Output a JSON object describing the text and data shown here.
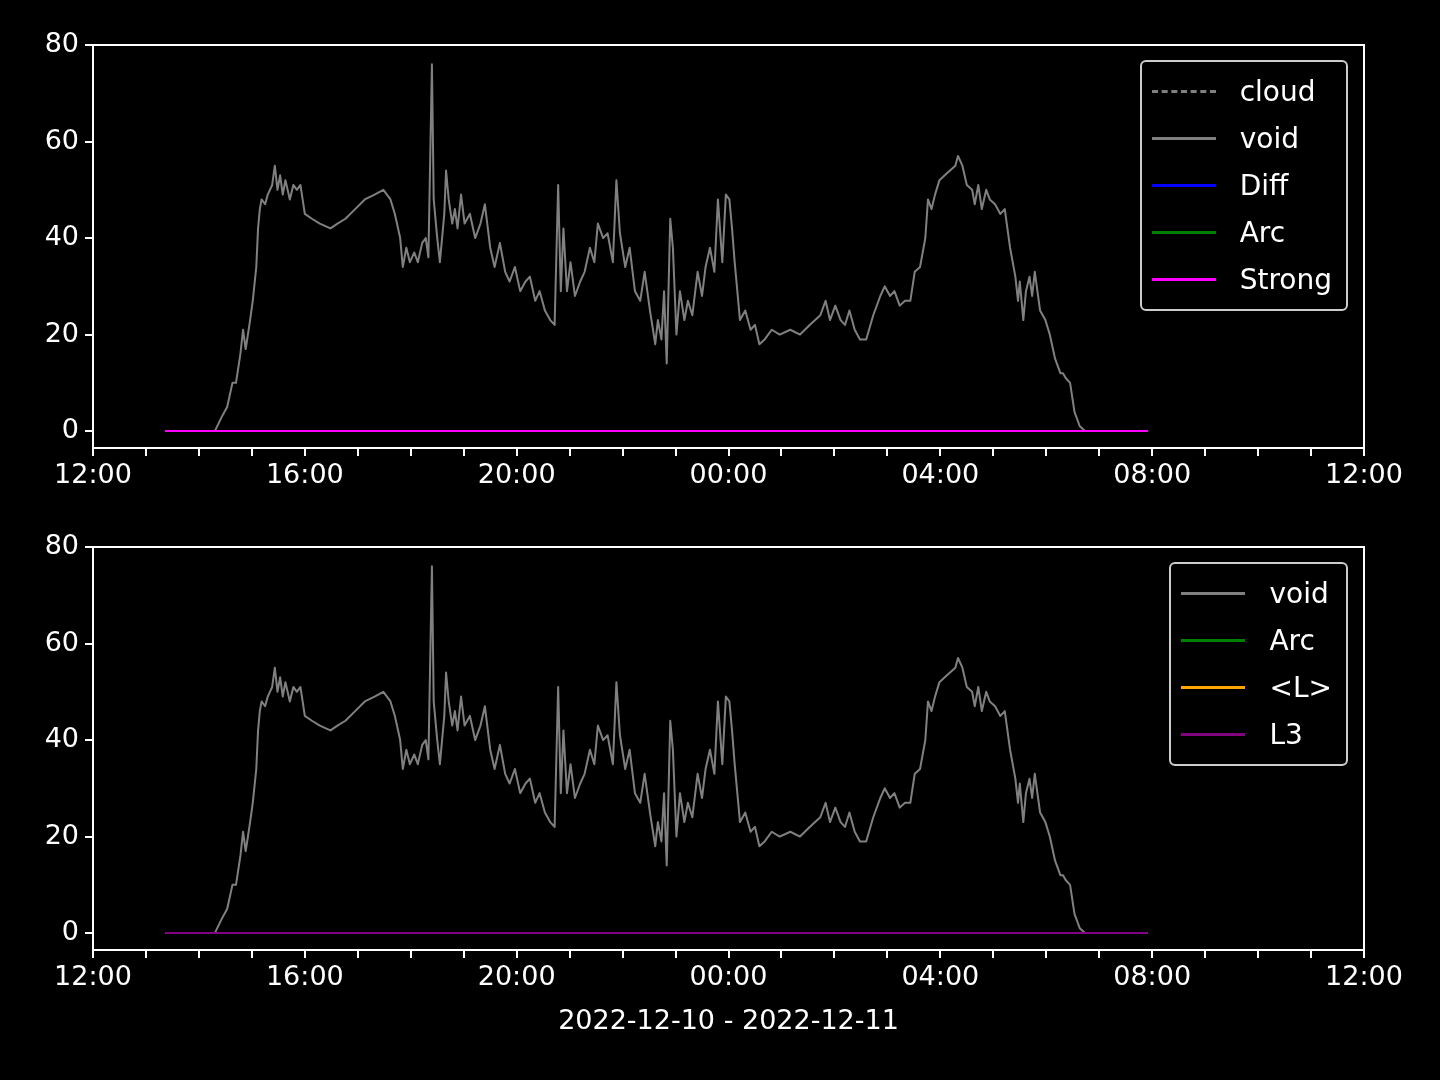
{
  "chart_data": [
    {
      "type": "line",
      "xlim": [
        "2022-12-10T12:00",
        "2022-12-11T12:00"
      ],
      "ylim": [
        -3.5,
        80
      ],
      "xticks": [
        {
          "value": "2022-12-10T12:00",
          "label": "12:00"
        },
        {
          "value": "2022-12-10T13:00",
          "label": null
        },
        {
          "value": "2022-12-10T14:00",
          "label": null
        },
        {
          "value": "2022-12-10T15:00",
          "label": null
        },
        {
          "value": "2022-12-10T16:00",
          "label": "16:00"
        },
        {
          "value": "2022-12-10T17:00",
          "label": null
        },
        {
          "value": "2022-12-10T18:00",
          "label": null
        },
        {
          "value": "2022-12-10T19:00",
          "label": null
        },
        {
          "value": "2022-12-10T20:00",
          "label": "20:00"
        },
        {
          "value": "2022-12-10T21:00",
          "label": null
        },
        {
          "value": "2022-12-10T22:00",
          "label": null
        },
        {
          "value": "2022-12-10T23:00",
          "label": null
        },
        {
          "value": "2022-12-11T00:00",
          "label": "00:00"
        },
        {
          "value": "2022-12-11T01:00",
          "label": null
        },
        {
          "value": "2022-12-11T02:00",
          "label": null
        },
        {
          "value": "2022-12-11T03:00",
          "label": null
        },
        {
          "value": "2022-12-11T04:00",
          "label": "04:00"
        },
        {
          "value": "2022-12-11T05:00",
          "label": null
        },
        {
          "value": "2022-12-11T06:00",
          "label": null
        },
        {
          "value": "2022-12-11T07:00",
          "label": null
        },
        {
          "value": "2022-12-11T08:00",
          "label": "08:00"
        },
        {
          "value": "2022-12-11T09:00",
          "label": null
        },
        {
          "value": "2022-12-11T10:00",
          "label": null
        },
        {
          "value": "2022-12-11T11:00",
          "label": null
        },
        {
          "value": "2022-12-11T12:00",
          "label": "12:00"
        }
      ],
      "yticks": [
        0,
        20,
        40,
        60,
        80
      ],
      "grid": false,
      "legend": "top right",
      "marker": "none",
      "series": [
        {
          "name": "cloud",
          "color": "#808080",
          "line_style": "dashed"
        },
        {
          "name": "void",
          "color": "#808080",
          "x": [
            "2022-12-10T13:22",
            "2022-12-10T14:18",
            "2022-12-10T14:26",
            "2022-12-10T14:32",
            "2022-12-10T14:38",
            "2022-12-10T14:42",
            "2022-12-10T14:47",
            "2022-12-10T14:50",
            "2022-12-10T14:53",
            "2022-12-10T14:58",
            "2022-12-10T15:01",
            "2022-12-10T15:05",
            "2022-12-10T15:07",
            "2022-12-10T15:09",
            "2022-12-10T15:11",
            "2022-12-10T15:15",
            "2022-12-10T15:18",
            "2022-12-10T15:23",
            "2022-12-10T15:26",
            "2022-12-10T15:29",
            "2022-12-10T15:32",
            "2022-12-10T15:35",
            "2022-12-10T15:38",
            "2022-12-10T15:43",
            "2022-12-10T15:47",
            "2022-12-10T15:51",
            "2022-12-10T15:55",
            "2022-12-10T16:00",
            "2022-12-10T16:08",
            "2022-12-10T16:17",
            "2022-12-10T16:29",
            "2022-12-10T16:37",
            "2022-12-10T16:46",
            "2022-12-10T16:57",
            "2022-12-10T17:08",
            "2022-12-10T17:19",
            "2022-12-10T17:29",
            "2022-12-10T17:37",
            "2022-12-10T17:42",
            "2022-12-10T17:48",
            "2022-12-10T17:51",
            "2022-12-10T17:55",
            "2022-12-10T17:59",
            "2022-12-10T18:04",
            "2022-12-10T18:08",
            "2022-12-10T18:13",
            "2022-12-10T18:17",
            "2022-12-10T18:20",
            "2022-12-10T18:24",
            "2022-12-10T18:26",
            "2022-12-10T18:30",
            "2022-12-10T18:33",
            "2022-12-10T18:38",
            "2022-12-10T18:40",
            "2022-12-10T18:43",
            "2022-12-10T18:47",
            "2022-12-10T18:50",
            "2022-12-10T18:53",
            "2022-12-10T18:57",
            "2022-12-10T19:01",
            "2022-12-10T19:07",
            "2022-12-10T19:13",
            "2022-12-10T19:19",
            "2022-12-10T19:24",
            "2022-12-10T19:30",
            "2022-12-10T19:35",
            "2022-12-10T19:41",
            "2022-12-10T19:47",
            "2022-12-10T19:52",
            "2022-12-10T19:58",
            "2022-12-10T20:04",
            "2022-12-10T20:10",
            "2022-12-10T20:15",
            "2022-12-10T20:21",
            "2022-12-10T20:26",
            "2022-12-10T20:32",
            "2022-12-10T20:38",
            "2022-12-10T20:43",
            "2022-12-10T20:47",
            "2022-12-10T20:50",
            "2022-12-10T20:53",
            "2022-12-10T20:57",
            "2022-12-10T21:01",
            "2022-12-10T21:06",
            "2022-12-10T21:12",
            "2022-12-10T21:17",
            "2022-12-10T21:23",
            "2022-12-10T21:28",
            "2022-12-10T21:32",
            "2022-12-10T21:38",
            "2022-12-10T21:43",
            "2022-12-10T21:49",
            "2022-12-10T21:53",
            "2022-12-10T21:57",
            "2022-12-10T22:03",
            "2022-12-10T22:08",
            "2022-12-10T22:14",
            "2022-12-10T22:20",
            "2022-12-10T22:25",
            "2022-12-10T22:31",
            "2022-12-10T22:37",
            "2022-12-10T22:40",
            "2022-12-10T22:44",
            "2022-12-10T22:47",
            "2022-12-10T22:50",
            "2022-12-10T22:54",
            "2022-12-10T22:57",
            "2022-12-10T23:01",
            "2022-12-10T23:05",
            "2022-12-10T23:10",
            "2022-12-10T23:14",
            "2022-12-10T23:19",
            "2022-12-10T23:25",
            "2022-12-10T23:30",
            "2022-12-10T23:34",
            "2022-12-10T23:39",
            "2022-12-10T23:44",
            "2022-12-10T23:48",
            "2022-12-10T23:53",
            "2022-12-10T23:57",
            "2022-12-11T00:01",
            "2022-12-11T00:04",
            "2022-12-11T00:07",
            "2022-12-11T00:13",
            "2022-12-11T00:19",
            "2022-12-11T00:25",
            "2022-12-11T00:30",
            "2022-12-11T00:35",
            "2022-12-11T00:41",
            "2022-12-11T00:49",
            "2022-12-11T00:58",
            "2022-12-11T01:10",
            "2022-12-11T01:21",
            "2022-12-11T01:32",
            "2022-12-11T01:44",
            "2022-12-11T01:50",
            "2022-12-11T01:55",
            "2022-12-11T02:01",
            "2022-12-11T02:07",
            "2022-12-11T02:12",
            "2022-12-11T02:17",
            "2022-12-11T02:23",
            "2022-12-11T02:29",
            "2022-12-11T02:36",
            "2022-12-11T02:44",
            "2022-12-11T02:52",
            "2022-12-11T02:57",
            "2022-12-11T03:03",
            "2022-12-11T03:08",
            "2022-12-11T03:14",
            "2022-12-11T03:20",
            "2022-12-11T03:26",
            "2022-12-11T03:31",
            "2022-12-11T03:37",
            "2022-12-11T03:43",
            "2022-12-11T03:46",
            "2022-12-11T03:50",
            "2022-12-11T03:54",
            "2022-12-11T03:59",
            "2022-12-11T04:05",
            "2022-12-11T04:11",
            "2022-12-11T04:17",
            "2022-12-11T04:20",
            "2022-12-11T04:25",
            "2022-12-11T04:30",
            "2022-12-11T04:36",
            "2022-12-11T04:39",
            "2022-12-11T04:43",
            "2022-12-11T04:47",
            "2022-12-11T04:52",
            "2022-12-11T04:56",
            "2022-12-11T05:02",
            "2022-12-11T05:08",
            "2022-12-11T05:13",
            "2022-12-11T05:19",
            "2022-12-11T05:25",
            "2022-12-11T05:28",
            "2022-12-11T05:30",
            "2022-12-11T05:34",
            "2022-12-11T05:37",
            "2022-12-11T05:41",
            "2022-12-11T05:44",
            "2022-12-11T05:47",
            "2022-12-11T05:53",
            "2022-12-11T05:59",
            "2022-12-11T06:04",
            "2022-12-11T06:10",
            "2022-12-11T06:16",
            "2022-12-11T06:19",
            "2022-12-11T06:22",
            "2022-12-11T06:27",
            "2022-12-11T06:32",
            "2022-12-11T06:38",
            "2022-12-11T06:44",
            "2022-12-11T07:55"
          ],
          "values": [
            0,
            0,
            3,
            5,
            10,
            10,
            16,
            21,
            17,
            23,
            27,
            34,
            42,
            46,
            48,
            47,
            49,
            51,
            55,
            50,
            53,
            49,
            52,
            48,
            51,
            50,
            51,
            45,
            44,
            43,
            42,
            43,
            44,
            46,
            48,
            49,
            50,
            48,
            45,
            40,
            34,
            38,
            35,
            37,
            35,
            39,
            40,
            36,
            76,
            48,
            40,
            35,
            45,
            54,
            48,
            43,
            46,
            42,
            49,
            43,
            45,
            40,
            43,
            47,
            38,
            34,
            39,
            33,
            31,
            34,
            29,
            31,
            32,
            27,
            29,
            25,
            23,
            22,
            51,
            29,
            42,
            29,
            35,
            28,
            31,
            33,
            38,
            35,
            43,
            40,
            41,
            35,
            52,
            41,
            34,
            38,
            29,
            27,
            33,
            25,
            18,
            23,
            19,
            29,
            14,
            44,
            38,
            20,
            29,
            23,
            27,
            24,
            33,
            28,
            34,
            38,
            33,
            48,
            35,
            49,
            48,
            42,
            35,
            23,
            25,
            21,
            22,
            18,
            19,
            21,
            20,
            21,
            20,
            22,
            24,
            27,
            23,
            26,
            23,
            22,
            25,
            21,
            19,
            19,
            24,
            28,
            30,
            28,
            29,
            26,
            27,
            27,
            33,
            34,
            40,
            48,
            46,
            49,
            52,
            53,
            54,
            55,
            57,
            55,
            51,
            50,
            47,
            51,
            46,
            50,
            48,
            47,
            45,
            46,
            38,
            32,
            27,
            31,
            23,
            29,
            32,
            28,
            33,
            25,
            23,
            20,
            15,
            12,
            12,
            11,
            10,
            4,
            1,
            0,
            0
          ]
        },
        {
          "name": "Diff",
          "color": "#0000ff"
        },
        {
          "name": "Arc",
          "color": "#008000"
        },
        {
          "name": "Strong",
          "color": "#ff00ff",
          "x": [
            "2022-12-10T13:22",
            "2022-12-11T07:55"
          ],
          "values": [
            0,
            0
          ]
        }
      ]
    },
    {
      "type": "line",
      "xlim": [
        "2022-12-10T12:00",
        "2022-12-11T12:00"
      ],
      "ylim": [
        -3.5,
        80
      ],
      "xlabel": "2022-12-10 - 2022-12-11",
      "xticks": [
        {
          "value": "2022-12-10T12:00",
          "label": "12:00"
        },
        {
          "value": "2022-12-10T13:00",
          "label": null
        },
        {
          "value": "2022-12-10T14:00",
          "label": null
        },
        {
          "value": "2022-12-10T15:00",
          "label": null
        },
        {
          "value": "2022-12-10T16:00",
          "label": "16:00"
        },
        {
          "value": "2022-12-10T17:00",
          "label": null
        },
        {
          "value": "2022-12-10T18:00",
          "label": null
        },
        {
          "value": "2022-12-10T19:00",
          "label": null
        },
        {
          "value": "2022-12-10T20:00",
          "label": "20:00"
        },
        {
          "value": "2022-12-10T21:00",
          "label": null
        },
        {
          "value": "2022-12-10T22:00",
          "label": null
        },
        {
          "value": "2022-12-10T23:00",
          "label": null
        },
        {
          "value": "2022-12-11T00:00",
          "label": "00:00"
        },
        {
          "value": "2022-12-11T01:00",
          "label": null
        },
        {
          "value": "2022-12-11T02:00",
          "label": null
        },
        {
          "value": "2022-12-11T03:00",
          "label": null
        },
        {
          "value": "2022-12-11T04:00",
          "label": "04:00"
        },
        {
          "value": "2022-12-11T05:00",
          "label": null
        },
        {
          "value": "2022-12-11T06:00",
          "label": null
        },
        {
          "value": "2022-12-11T07:00",
          "label": null
        },
        {
          "value": "2022-12-11T08:00",
          "label": "08:00"
        },
        {
          "value": "2022-12-11T09:00",
          "label": null
        },
        {
          "value": "2022-12-11T10:00",
          "label": null
        },
        {
          "value": "2022-12-11T11:00",
          "label": null
        },
        {
          "value": "2022-12-11T12:00",
          "label": "12:00"
        }
      ],
      "yticks": [
        0,
        20,
        40,
        60,
        80
      ],
      "grid": false,
      "legend": "top right",
      "marker": "none",
      "series": [
        {
          "name": "void",
          "color": "#808080",
          "x": [
            "2022-12-10T13:22",
            "2022-12-10T14:18",
            "2022-12-10T14:26",
            "2022-12-10T14:32",
            "2022-12-10T14:38",
            "2022-12-10T14:42",
            "2022-12-10T14:47",
            "2022-12-10T14:50",
            "2022-12-10T14:53",
            "2022-12-10T14:58",
            "2022-12-10T15:01",
            "2022-12-10T15:05",
            "2022-12-10T15:07",
            "2022-12-10T15:09",
            "2022-12-10T15:11",
            "2022-12-10T15:15",
            "2022-12-10T15:18",
            "2022-12-10T15:23",
            "2022-12-10T15:26",
            "2022-12-10T15:29",
            "2022-12-10T15:32",
            "2022-12-10T15:35",
            "2022-12-10T15:38",
            "2022-12-10T15:43",
            "2022-12-10T15:47",
            "2022-12-10T15:51",
            "2022-12-10T15:55",
            "2022-12-10T16:00",
            "2022-12-10T16:08",
            "2022-12-10T16:17",
            "2022-12-10T16:29",
            "2022-12-10T16:37",
            "2022-12-10T16:46",
            "2022-12-10T16:57",
            "2022-12-10T17:08",
            "2022-12-10T17:19",
            "2022-12-10T17:29",
            "2022-12-10T17:37",
            "2022-12-10T17:42",
            "2022-12-10T17:48",
            "2022-12-10T17:51",
            "2022-12-10T17:55",
            "2022-12-10T17:59",
            "2022-12-10T18:04",
            "2022-12-10T18:08",
            "2022-12-10T18:13",
            "2022-12-10T18:17",
            "2022-12-10T18:20",
            "2022-12-10T18:24",
            "2022-12-10T18:26",
            "2022-12-10T18:30",
            "2022-12-10T18:33",
            "2022-12-10T18:38",
            "2022-12-10T18:40",
            "2022-12-10T18:43",
            "2022-12-10T18:47",
            "2022-12-10T18:50",
            "2022-12-10T18:53",
            "2022-12-10T18:57",
            "2022-12-10T19:01",
            "2022-12-10T19:07",
            "2022-12-10T19:13",
            "2022-12-10T19:19",
            "2022-12-10T19:24",
            "2022-12-10T19:30",
            "2022-12-10T19:35",
            "2022-12-10T19:41",
            "2022-12-10T19:47",
            "2022-12-10T19:52",
            "2022-12-10T19:58",
            "2022-12-10T20:04",
            "2022-12-10T20:10",
            "2022-12-10T20:15",
            "2022-12-10T20:21",
            "2022-12-10T20:26",
            "2022-12-10T20:32",
            "2022-12-10T20:38",
            "2022-12-10T20:43",
            "2022-12-10T20:47",
            "2022-12-10T20:50",
            "2022-12-10T20:53",
            "2022-12-10T20:57",
            "2022-12-10T21:01",
            "2022-12-10T21:06",
            "2022-12-10T21:12",
            "2022-12-10T21:17",
            "2022-12-10T21:23",
            "2022-12-10T21:28",
            "2022-12-10T21:32",
            "2022-12-10T21:38",
            "2022-12-10T21:43",
            "2022-12-10T21:49",
            "2022-12-10T21:53",
            "2022-12-10T21:57",
            "2022-12-10T22:03",
            "2022-12-10T22:08",
            "2022-12-10T22:14",
            "2022-12-10T22:20",
            "2022-12-10T22:25",
            "2022-12-10T22:31",
            "2022-12-10T22:37",
            "2022-12-10T22:40",
            "2022-12-10T22:44",
            "2022-12-10T22:47",
            "2022-12-10T22:50",
            "2022-12-10T22:54",
            "2022-12-10T22:57",
            "2022-12-10T23:01",
            "2022-12-10T23:05",
            "2022-12-10T23:10",
            "2022-12-10T23:14",
            "2022-12-10T23:19",
            "2022-12-10T23:25",
            "2022-12-10T23:30",
            "2022-12-10T23:34",
            "2022-12-10T23:39",
            "2022-12-10T23:44",
            "2022-12-10T23:48",
            "2022-12-10T23:53",
            "2022-12-10T23:57",
            "2022-12-11T00:01",
            "2022-12-11T00:04",
            "2022-12-11T00:07",
            "2022-12-11T00:13",
            "2022-12-11T00:19",
            "2022-12-11T00:25",
            "2022-12-11T00:30",
            "2022-12-11T00:35",
            "2022-12-11T00:41",
            "2022-12-11T00:49",
            "2022-12-11T00:58",
            "2022-12-11T01:10",
            "2022-12-11T01:21",
            "2022-12-11T01:32",
            "2022-12-11T01:44",
            "2022-12-11T01:50",
            "2022-12-11T01:55",
            "2022-12-11T02:01",
            "2022-12-11T02:07",
            "2022-12-11T02:12",
            "2022-12-11T02:17",
            "2022-12-11T02:23",
            "2022-12-11T02:29",
            "2022-12-11T02:36",
            "2022-12-11T02:44",
            "2022-12-11T02:52",
            "2022-12-11T02:57",
            "2022-12-11T03:03",
            "2022-12-11T03:08",
            "2022-12-11T03:14",
            "2022-12-11T03:20",
            "2022-12-11T03:26",
            "2022-12-11T03:31",
            "2022-12-11T03:37",
            "2022-12-11T03:43",
            "2022-12-11T03:46",
            "2022-12-11T03:50",
            "2022-12-11T03:54",
            "2022-12-11T03:59",
            "2022-12-11T04:05",
            "2022-12-11T04:11",
            "2022-12-11T04:17",
            "2022-12-11T04:20",
            "2022-12-11T04:25",
            "2022-12-11T04:30",
            "2022-12-11T04:36",
            "2022-12-11T04:39",
            "2022-12-11T04:43",
            "2022-12-11T04:47",
            "2022-12-11T04:52",
            "2022-12-11T04:56",
            "2022-12-11T05:02",
            "2022-12-11T05:08",
            "2022-12-11T05:13",
            "2022-12-11T05:19",
            "2022-12-11T05:25",
            "2022-12-11T05:28",
            "2022-12-11T05:30",
            "2022-12-11T05:34",
            "2022-12-11T05:37",
            "2022-12-11T05:41",
            "2022-12-11T05:44",
            "2022-12-11T05:47",
            "2022-12-11T05:53",
            "2022-12-11T05:59",
            "2022-12-11T06:04",
            "2022-12-11T06:10",
            "2022-12-11T06:16",
            "2022-12-11T06:19",
            "2022-12-11T06:22",
            "2022-12-11T06:27",
            "2022-12-11T06:32",
            "2022-12-11T06:38",
            "2022-12-11T06:44",
            "2022-12-11T07:55"
          ],
          "values": [
            0,
            0,
            3,
            5,
            10,
            10,
            16,
            21,
            17,
            23,
            27,
            34,
            42,
            46,
            48,
            47,
            49,
            51,
            55,
            50,
            53,
            49,
            52,
            48,
            51,
            50,
            51,
            45,
            44,
            43,
            42,
            43,
            44,
            46,
            48,
            49,
            50,
            48,
            45,
            40,
            34,
            38,
            35,
            37,
            35,
            39,
            40,
            36,
            76,
            48,
            40,
            35,
            45,
            54,
            48,
            43,
            46,
            42,
            49,
            43,
            45,
            40,
            43,
            47,
            38,
            34,
            39,
            33,
            31,
            34,
            29,
            31,
            32,
            27,
            29,
            25,
            23,
            22,
            51,
            29,
            42,
            29,
            35,
            28,
            31,
            33,
            38,
            35,
            43,
            40,
            41,
            35,
            52,
            41,
            34,
            38,
            29,
            27,
            33,
            25,
            18,
            23,
            19,
            29,
            14,
            44,
            38,
            20,
            29,
            23,
            27,
            24,
            33,
            28,
            34,
            38,
            33,
            48,
            35,
            49,
            48,
            42,
            35,
            23,
            25,
            21,
            22,
            18,
            19,
            21,
            20,
            21,
            20,
            22,
            24,
            27,
            23,
            26,
            23,
            22,
            25,
            21,
            19,
            19,
            24,
            28,
            30,
            28,
            29,
            26,
            27,
            27,
            33,
            34,
            40,
            48,
            46,
            49,
            52,
            53,
            54,
            55,
            57,
            55,
            51,
            50,
            47,
            51,
            46,
            50,
            48,
            47,
            45,
            46,
            38,
            32,
            27,
            31,
            23,
            29,
            32,
            28,
            33,
            25,
            23,
            20,
            15,
            12,
            12,
            11,
            10,
            4,
            1,
            0,
            0
          ]
        },
        {
          "name": "Arc",
          "color": "#008000"
        },
        {
          "name": "<L>",
          "color": "#ffa500"
        },
        {
          "name": "L3",
          "color": "#800080",
          "x": [
            "2022-12-10T13:22",
            "2022-12-11T07:55"
          ],
          "values": [
            0,
            0
          ]
        }
      ]
    }
  ]
}
